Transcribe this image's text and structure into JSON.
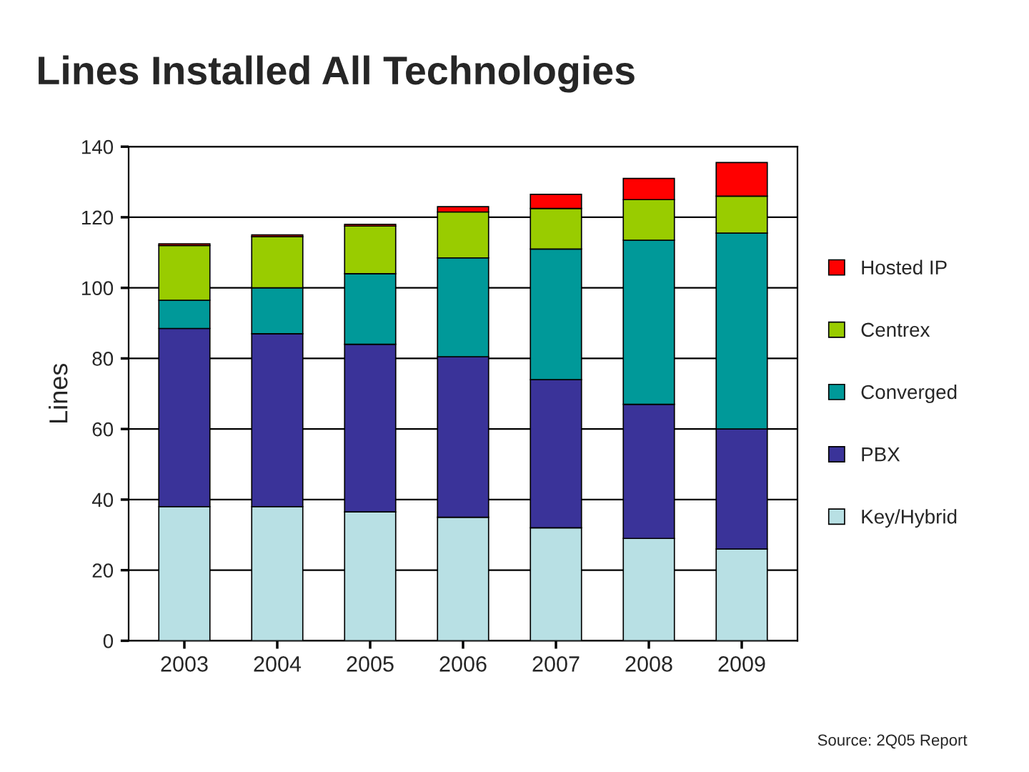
{
  "chart_data": {
    "type": "bar",
    "title": "Lines Installed All Technologies",
    "ylabel": "Lines",
    "categories": [
      "2003",
      "2004",
      "2005",
      "2006",
      "2007",
      "2008",
      "2009"
    ],
    "stacked": true,
    "series": [
      {
        "name": "Key/Hybrid",
        "color": "#b8e0e4",
        "values": [
          38,
          38,
          36.5,
          35,
          32,
          29,
          26
        ]
      },
      {
        "name": "PBX",
        "color": "#3a3399",
        "values": [
          50.5,
          49,
          47.5,
          45.5,
          42,
          38,
          34
        ]
      },
      {
        "name": "Converged",
        "color": "#009999",
        "values": [
          8,
          13,
          20,
          28,
          37,
          46.5,
          55.5
        ]
      },
      {
        "name": "Centrex",
        "color": "#99cc00",
        "values": [
          15.5,
          14.5,
          13.5,
          13,
          11.5,
          11.5,
          10.5
        ]
      },
      {
        "name": "Hosted IP",
        "color": "#ff0000",
        "values": [
          0.5,
          0.5,
          0.5,
          1.5,
          4,
          6,
          9.5
        ]
      }
    ],
    "ylim": [
      0,
      140
    ],
    "yticks": [
      0,
      20,
      40,
      60,
      80,
      100,
      120,
      140
    ],
    "grid": "y",
    "legend": "right",
    "annotations": [
      "Source: 2Q05 Report"
    ]
  }
}
